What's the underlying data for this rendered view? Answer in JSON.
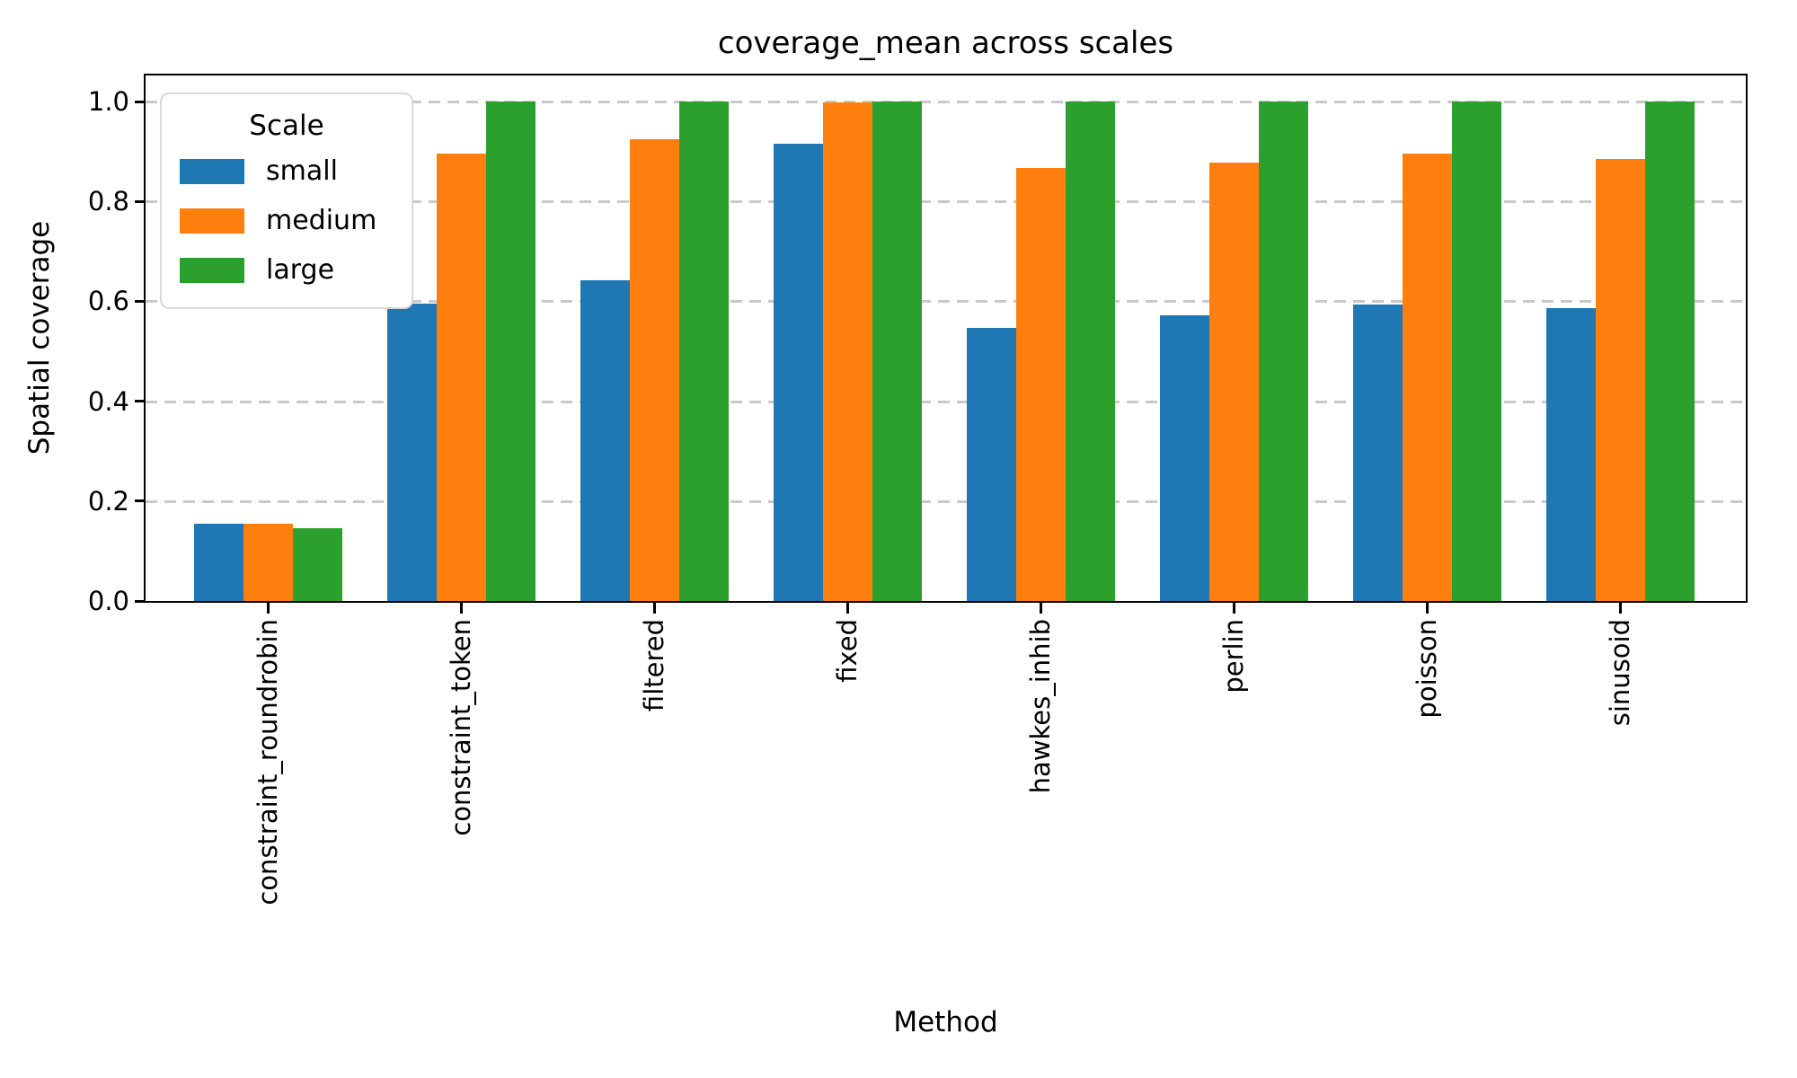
{
  "chart_data": {
    "type": "bar",
    "title": "coverage_mean across scales",
    "xlabel": "Method",
    "ylabel": "Spatial coverage",
    "categories": [
      "constraint_roundrobin",
      "constraint_token",
      "filtered",
      "fixed",
      "hawkes_inhib",
      "perlin",
      "poisson",
      "sinusoid"
    ],
    "series": [
      {
        "name": "small",
        "color": "#1f77b4",
        "values": [
          0.155,
          0.595,
          0.642,
          0.915,
          0.547,
          0.572,
          0.594,
          0.586
        ]
      },
      {
        "name": "medium",
        "color": "#ff7f0e",
        "values": [
          0.154,
          0.895,
          0.924,
          0.998,
          0.867,
          0.878,
          0.895,
          0.885
        ]
      },
      {
        "name": "large",
        "color": "#2ca02c",
        "values": [
          0.145,
          1.0,
          1.0,
          1.0,
          1.0,
          1.0,
          1.0,
          1.0
        ]
      }
    ],
    "ylim": [
      0.0,
      1.052
    ],
    "yticks": [
      0.0,
      0.2,
      0.4,
      0.6,
      0.8,
      1.0
    ],
    "ytick_labels": [
      "0.0",
      "0.2",
      "0.4",
      "0.6",
      "0.8",
      "1.0"
    ],
    "legend": {
      "title": "Scale",
      "position": "upper left"
    },
    "grid": "y-dashed",
    "grid_color": "#c9c9c9",
    "x_labels_rotation_deg": 90
  }
}
